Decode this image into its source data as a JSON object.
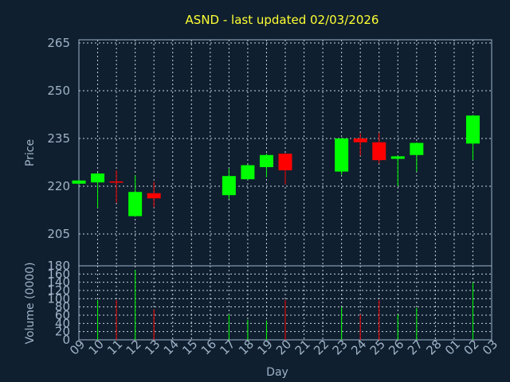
{
  "colors": {
    "background": "#0f1f2f",
    "up": "#00ff00",
    "down": "#ff0000",
    "axis": "#9fb3c8",
    "title": "#ffff33",
    "grid": "#c8d2dc"
  },
  "chart_data": {
    "type": "candlestick",
    "title": "ASND - last updated 02/03/2026",
    "xlabel": "Day",
    "price_ylabel": "Price",
    "volume_ylabel": "Volume (0000)",
    "price_ylim": [
      195,
      266
    ],
    "price_yticks": [
      "205",
      "220",
      "235",
      "250",
      "265"
    ],
    "volume_ylim": [
      0,
      180
    ],
    "volume_yticks": [
      "0",
      "20",
      "40",
      "60",
      "80",
      "100",
      "120",
      "140",
      "160",
      "180"
    ],
    "x_ticks": [
      "09",
      "10",
      "11",
      "12",
      "13",
      "14",
      "15",
      "16",
      "17",
      "18",
      "19",
      "20",
      "21",
      "22",
      "23",
      "24",
      "25",
      "26",
      "27",
      "28",
      "01",
      "02",
      "03"
    ],
    "grid": true,
    "candles": [
      {
        "day": "09",
        "open": 220.8,
        "close": 221.8,
        "high": 222.0,
        "low": 220.6,
        "volume": 0
      },
      {
        "day": "10",
        "open": 221.2,
        "close": 224.0,
        "high": 224.2,
        "low": 213.2,
        "volume": 97
      },
      {
        "day": "11",
        "open": 221.5,
        "close": 221.3,
        "high": 225.0,
        "low": 214.8,
        "volume": 97
      },
      {
        "day": "12",
        "open": 210.6,
        "close": 218.2,
        "high": 223.4,
        "low": 210.4,
        "volume": 170
      },
      {
        "day": "13",
        "open": 217.8,
        "close": 216.2,
        "high": 221.4,
        "low": 213.4,
        "volume": 74
      },
      {
        "day": "17",
        "open": 217.2,
        "close": 223.2,
        "high": 225.6,
        "low": 216.0,
        "volume": 62
      },
      {
        "day": "18",
        "open": 222.2,
        "close": 226.6,
        "high": 226.8,
        "low": 222.0,
        "volume": 49
      },
      {
        "day": "19",
        "open": 226.0,
        "close": 229.8,
        "high": 230.2,
        "low": 222.8,
        "volume": 47
      },
      {
        "day": "20",
        "open": 230.2,
        "close": 225.0,
        "high": 230.4,
        "low": 220.6,
        "volume": 97
      },
      {
        "day": "23",
        "open": 224.6,
        "close": 235.0,
        "high": 235.2,
        "low": 223.6,
        "volume": 80
      },
      {
        "day": "24",
        "open": 235.0,
        "close": 233.8,
        "high": 236.6,
        "low": 229.6,
        "volume": 62
      },
      {
        "day": "25",
        "open": 233.8,
        "close": 228.2,
        "high": 236.8,
        "low": 227.2,
        "volume": 97
      },
      {
        "day": "26",
        "open": 228.6,
        "close": 229.4,
        "high": 229.6,
        "low": 220.0,
        "volume": 62
      },
      {
        "day": "27",
        "open": 229.8,
        "close": 233.6,
        "high": 233.8,
        "low": 224.6,
        "volume": 78
      },
      {
        "day": "02",
        "open": 233.4,
        "close": 242.2,
        "high": 242.4,
        "low": 228.2,
        "volume": 140
      }
    ]
  }
}
